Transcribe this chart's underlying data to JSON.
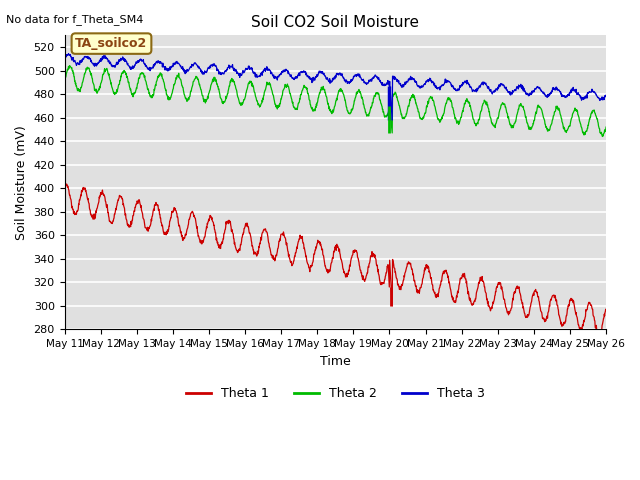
{
  "title": "Soil CO2 Soil Moisture",
  "xlabel": "Time",
  "ylabel": "Soil Moisture (mV)",
  "top_left_text": "No data for f_Theta_SM4",
  "annotation_box": "TA_soilco2",
  "ylim": [
    280,
    530
  ],
  "yticks": [
    280,
    300,
    320,
    340,
    360,
    380,
    400,
    420,
    440,
    460,
    480,
    500,
    520
  ],
  "bg_color": "#e0e0e0",
  "fig_color": "#ffffff",
  "legend_items": [
    {
      "label": "Theta 1",
      "color": "#cc0000"
    },
    {
      "label": "Theta 2",
      "color": "#00bb00"
    },
    {
      "label": "Theta 3",
      "color": "#0000cc"
    }
  ],
  "x_tick_labels": [
    "May 1",
    "May 1",
    "May 1",
    "May 1",
    "May 1",
    "May 1",
    "May 1",
    "May 1",
    "May 1",
    "May 2",
    "May 2",
    "May 2",
    "May 2",
    "May 2",
    "May 2",
    "May 26"
  ],
  "num_points": 1500,
  "days": 15
}
